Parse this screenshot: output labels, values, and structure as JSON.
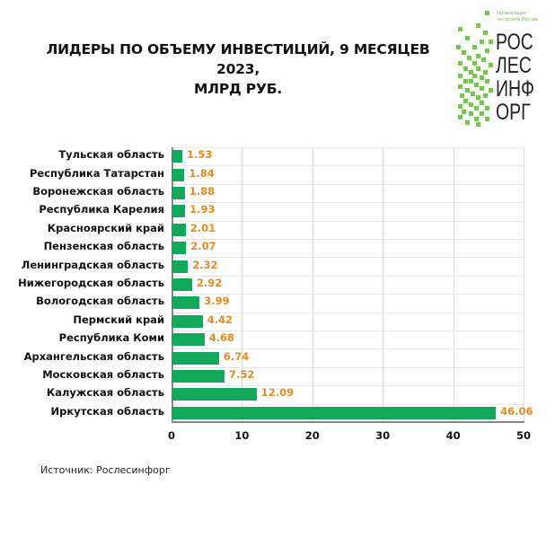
{
  "header": {
    "title_line1": "ЛИДЕРЫ ПО ОБЪЕМУ ИНВЕСТИЦИЙ, 9 МЕСЯЦЕВ 2023,",
    "title_line2": "МЛРД РУБ."
  },
  "logo": {
    "tagline_line1": "Организация",
    "tagline_line2": "лесоучета России",
    "word_lines": [
      "РОС",
      "ЛЕС",
      "ИНФ",
      "ОРГ"
    ],
    "accent_color": "#7cc05e"
  },
  "chart_data": {
    "type": "bar",
    "orientation": "horizontal",
    "title": "ЛИДЕРЫ ПО ОБЪЕМУ ИНВЕСТИЦИЙ, 9 МЕСЯЦЕВ 2023, МЛРД РУБ.",
    "xlabel": "",
    "ylabel": "",
    "categories": [
      "Тульская область",
      "Республика Татарстан",
      "Воронежская область",
      "Республика Карелия",
      "Красноярский край",
      "Пензенская область",
      "Ленинградская область",
      "Нижегородская область",
      "Вологодская область",
      "Пермский край",
      "Республика Коми",
      "Архангельская область",
      "Московская область",
      "Калужская область",
      "Иркутская область"
    ],
    "values": [
      1.53,
      1.84,
      1.88,
      1.93,
      2.01,
      2.07,
      2.32,
      2.92,
      3.99,
      4.42,
      4.68,
      6.74,
      7.52,
      12.09,
      46.06
    ],
    "value_labels": [
      "1.53",
      "1.84",
      "1.88",
      "1.93",
      "2.01",
      "2.07",
      "2.32",
      "2.92",
      "3.99",
      "4.42",
      "4.68",
      "6.74",
      "7.52",
      "12.09",
      "46.06"
    ],
    "xlim": [
      0,
      50
    ],
    "xticks": [
      "0",
      "10",
      "20",
      "30",
      "40",
      "50"
    ],
    "grid": true,
    "legend": null,
    "bar_color": "#11a85c",
    "value_label_color": "#e68a1e"
  },
  "footer": {
    "source": "Источник: Рослесинфорг"
  }
}
